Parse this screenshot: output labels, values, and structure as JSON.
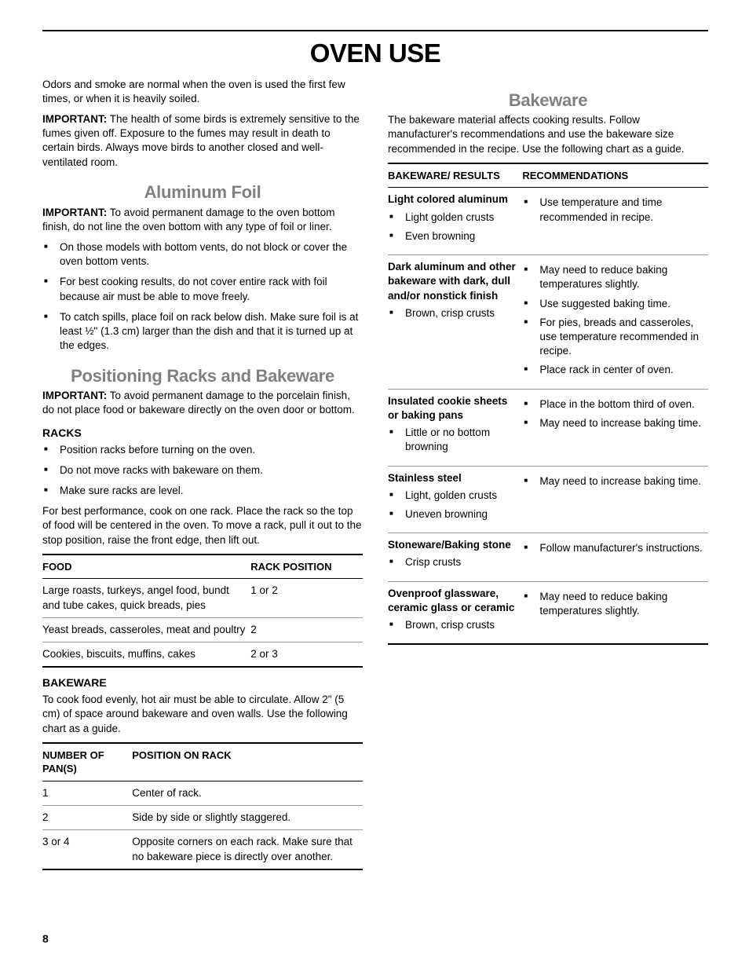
{
  "page_number": "8",
  "main_title": "OVEN USE",
  "colors": {
    "text": "#000000",
    "muted_heading": "#808080",
    "rule_light": "#999999",
    "rule_dark": "#000000",
    "background": "#ffffff"
  },
  "typography": {
    "body_size_pt": 10,
    "heading_size_pt": 16,
    "title_size_pt": 24
  },
  "left": {
    "intro_p1": "Odors and smoke are normal when the oven is used the first few times, or when it is heavily soiled.",
    "intro_p2_label": "IMPORTANT:",
    "intro_p2": " The health of some birds is extremely sensitive to the fumes given off. Exposure to the fumes may result in death to certain birds. Always move birds to another closed and well-ventilated room.",
    "al_heading": "Aluminum Foil",
    "al_imp_label": "IMPORTANT:",
    "al_imp": " To avoid permanent damage to the oven bottom finish, do not line the oven bottom with any type of foil or liner.",
    "al_bullets": [
      "On those models with bottom vents, do not block or cover the oven bottom vents.",
      "For best cooking results, do not cover entire rack with foil because air must be able to move freely.",
      "To catch spills, place foil on rack below dish. Make sure foil is at least ½\" (1.3 cm) larger than the dish and that it is turned up at the edges."
    ],
    "pos_heading": "Positioning Racks and Bakeware",
    "pos_imp_label": "IMPORTANT:",
    "pos_imp": " To avoid permanent damage to the porcelain finish, do not place food or bakeware directly on the oven door or bottom.",
    "racks_sub": "RACKS",
    "racks_bullets": [
      "Position racks before turning on the oven.",
      "Do not move racks with bakeware on them.",
      "Make sure racks are level."
    ],
    "racks_p": "For best performance, cook on one rack. Place the rack so the top of food will be centered in the oven. To move a rack, pull it out to the stop position, raise the front edge, then lift out.",
    "food_table": {
      "type": "table",
      "columns": [
        "FOOD",
        "RACK POSITION"
      ],
      "rows": [
        [
          "Large roasts, turkeys, angel food, bundt and tube cakes, quick breads, pies",
          "1 or 2"
        ],
        [
          "Yeast breads, casseroles, meat and poultry",
          "2"
        ],
        [
          "Cookies, biscuits, muffins, cakes",
          "2 or 3"
        ]
      ]
    },
    "bakeware_sub": "BAKEWARE",
    "bakeware_p": "To cook food evenly, hot air must be able to circulate. Allow 2\" (5 cm) of space around bakeware and oven walls. Use the following chart as a guide.",
    "pans_table": {
      "type": "table",
      "columns": [
        "NUMBER OF PAN(S)",
        "POSITION ON RACK"
      ],
      "rows": [
        [
          "1",
          "Center of rack."
        ],
        [
          "2",
          "Side by side or slightly staggered."
        ],
        [
          "3 or 4",
          "Opposite corners on each rack. Make sure that no bakeware piece is directly over another."
        ]
      ]
    }
  },
  "right": {
    "bw_heading": "Bakeware",
    "bw_intro": "The bakeware material affects cooking results. Follow manufacturer's recommendations and use the bakeware size recommended in the recipe. Use the following chart as a guide.",
    "bw_table": {
      "type": "table",
      "columns": [
        "BAKEWARE/ RESULTS",
        "RECOMMENDATIONS"
      ],
      "rows": [
        {
          "name": "Light colored aluminum",
          "results": [
            "Light golden crusts",
            "Even browning"
          ],
          "recs": [
            "Use temperature and time recommended in recipe."
          ]
        },
        {
          "name": "Dark aluminum and other bakeware with dark, dull and/or nonstick finish",
          "results": [
            "Brown, crisp crusts"
          ],
          "recs": [
            "May need to reduce baking temperatures slightly.",
            "Use suggested baking time.",
            "For pies, breads and casseroles, use temperature recommended in recipe.",
            "Place rack in center of oven."
          ]
        },
        {
          "name": "Insulated cookie sheets or baking pans",
          "results": [
            "Little or no bottom browning"
          ],
          "recs": [
            "Place in the bottom third of oven.",
            "May need to increase baking time."
          ]
        },
        {
          "name": "Stainless steel",
          "results": [
            "Light, golden crusts",
            "Uneven browning"
          ],
          "recs": [
            "May need to increase baking time."
          ]
        },
        {
          "name": "Stoneware/Baking stone",
          "results": [
            "Crisp crusts"
          ],
          "recs": [
            "Follow manufacturer's instructions."
          ]
        },
        {
          "name": "Ovenproof glassware, ceramic glass or ceramic",
          "results": [
            "Brown, crisp crusts"
          ],
          "recs": [
            "May need to reduce baking temperatures slightly."
          ]
        }
      ]
    }
  }
}
